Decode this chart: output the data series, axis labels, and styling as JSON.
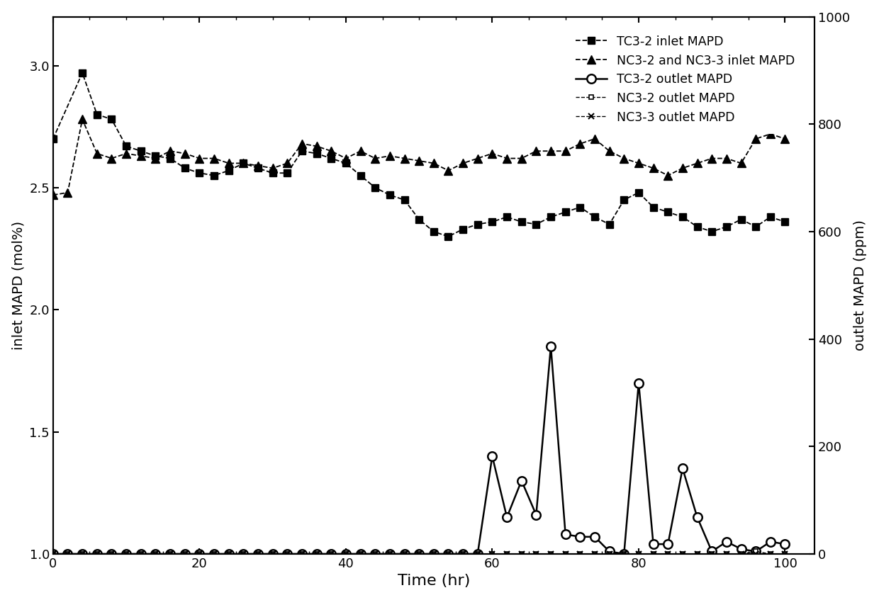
{
  "tc32_inlet_x": [
    0,
    4,
    6,
    8,
    10,
    12,
    14,
    16,
    18,
    20,
    22,
    24,
    26,
    28,
    30,
    32,
    34,
    36,
    38,
    40,
    42,
    44,
    46,
    48,
    50,
    52,
    54,
    56,
    58,
    60,
    62,
    64,
    66,
    68,
    70,
    72,
    74,
    76,
    78,
    80,
    82,
    84,
    86,
    88,
    90,
    92,
    94,
    96,
    98,
    100
  ],
  "tc32_inlet_y": [
    2.7,
    2.97,
    2.8,
    2.78,
    2.67,
    2.65,
    2.63,
    2.62,
    2.58,
    2.56,
    2.55,
    2.57,
    2.6,
    2.58,
    2.56,
    2.56,
    2.65,
    2.64,
    2.62,
    2.6,
    2.55,
    2.5,
    2.47,
    2.45,
    2.37,
    2.32,
    2.3,
    2.33,
    2.35,
    2.36,
    2.38,
    2.36,
    2.35,
    2.38,
    2.4,
    2.42,
    2.38,
    2.35,
    2.45,
    2.48,
    2.42,
    2.4,
    2.38,
    2.34,
    2.32,
    2.34,
    2.37,
    2.34,
    2.38,
    2.36
  ],
  "nc32_nc33_inlet_x": [
    0,
    2,
    4,
    6,
    8,
    10,
    12,
    14,
    16,
    18,
    20,
    22,
    24,
    26,
    28,
    30,
    32,
    34,
    36,
    38,
    40,
    42,
    44,
    46,
    48,
    50,
    52,
    54,
    56,
    58,
    60,
    62,
    64,
    66,
    68,
    70,
    72,
    74,
    76,
    78,
    80,
    82,
    84,
    86,
    88,
    90,
    92,
    94,
    96,
    98,
    100
  ],
  "nc32_nc33_inlet_y": [
    2.47,
    2.48,
    2.78,
    2.64,
    2.62,
    2.64,
    2.63,
    2.62,
    2.65,
    2.64,
    2.62,
    2.62,
    2.6,
    2.6,
    2.59,
    2.58,
    2.6,
    2.68,
    2.67,
    2.65,
    2.62,
    2.65,
    2.62,
    2.63,
    2.62,
    2.61,
    2.6,
    2.57,
    2.6,
    2.62,
    2.64,
    2.62,
    2.62,
    2.65,
    2.65,
    2.65,
    2.68,
    2.7,
    2.65,
    2.62,
    2.6,
    2.58,
    2.55,
    2.58,
    2.6,
    2.62,
    2.62,
    2.6,
    2.7,
    2.72,
    2.7
  ],
  "tc32_outlet_x": [
    0,
    2,
    4,
    6,
    8,
    10,
    12,
    14,
    16,
    18,
    20,
    22,
    24,
    26,
    28,
    30,
    32,
    34,
    36,
    38,
    40,
    42,
    44,
    46,
    48,
    50,
    52,
    54,
    56,
    58,
    60,
    62,
    64,
    66,
    68,
    70,
    72,
    74,
    76,
    78,
    80,
    82,
    84,
    86,
    88,
    90,
    92,
    94,
    96,
    98,
    100
  ],
  "tc32_outlet_y": [
    1.0,
    1.0,
    1.0,
    1.0,
    1.0,
    1.0,
    1.0,
    1.0,
    1.0,
    1.0,
    1.0,
    1.0,
    1.0,
    1.0,
    1.0,
    1.0,
    1.0,
    1.0,
    1.0,
    1.0,
    1.0,
    1.0,
    1.0,
    1.0,
    1.0,
    1.0,
    1.0,
    1.0,
    1.0,
    1.0,
    1.4,
    1.15,
    1.3,
    1.16,
    1.85,
    1.08,
    1.07,
    1.07,
    1.01,
    1.0,
    1.7,
    1.04,
    1.04,
    1.35,
    1.15,
    1.01,
    1.05,
    1.02,
    1.01,
    1.05,
    1.04
  ],
  "nc32_outlet_x": [
    0,
    2,
    4,
    6,
    8,
    10,
    12,
    14,
    16,
    18,
    20,
    22,
    24,
    26,
    28,
    30,
    32,
    34,
    36,
    38,
    40,
    42,
    44,
    46,
    48,
    50,
    52,
    54,
    56,
    58,
    60,
    62,
    64,
    66,
    68,
    70,
    72,
    74,
    76,
    78,
    80,
    82,
    84,
    86,
    88,
    90,
    92,
    94,
    96,
    98,
    100
  ],
  "nc32_outlet_y": [
    1.0,
    1.0,
    1.0,
    1.0,
    1.0,
    1.0,
    1.0,
    1.0,
    1.0,
    1.0,
    1.0,
    1.0,
    1.0,
    1.0,
    1.0,
    1.0,
    1.0,
    1.0,
    1.0,
    1.0,
    1.0,
    1.0,
    1.0,
    1.0,
    1.0,
    1.0,
    1.0,
    1.0,
    1.0,
    1.0,
    1.0,
    1.0,
    1.0,
    1.0,
    1.0,
    1.0,
    1.0,
    1.0,
    1.0,
    1.0,
    1.0,
    1.0,
    1.0,
    1.0,
    1.0,
    1.0,
    1.0,
    1.0,
    1.01,
    1.0,
    1.0
  ],
  "nc33_outlet_x": [
    0,
    2,
    4,
    6,
    8,
    10,
    12,
    14,
    16,
    18,
    20,
    22,
    24,
    26,
    28,
    30,
    32,
    34,
    36,
    38,
    40,
    42,
    44,
    46,
    48,
    50,
    52,
    54,
    56,
    58,
    60,
    62,
    64,
    66,
    68,
    70,
    72,
    74,
    76,
    78,
    80,
    82,
    84,
    86,
    88,
    90,
    92,
    94,
    96,
    98,
    100
  ],
  "nc33_outlet_y": [
    1.0,
    1.0,
    1.0,
    1.0,
    1.0,
    1.0,
    1.0,
    1.0,
    1.0,
    1.0,
    1.0,
    1.0,
    1.0,
    1.0,
    1.0,
    1.0,
    1.0,
    1.0,
    1.0,
    1.0,
    1.0,
    1.0,
    1.0,
    1.0,
    1.0,
    1.0,
    1.0,
    1.0,
    1.0,
    1.0,
    1.0,
    1.0,
    1.0,
    1.0,
    1.0,
    1.0,
    1.0,
    1.0,
    1.0,
    1.0,
    1.0,
    1.0,
    1.0,
    1.0,
    1.0,
    1.0,
    1.0,
    1.0,
    1.0,
    1.0,
    1.0
  ],
  "xlabel": "Time (hr)",
  "ylabel_left": "inlet MAPD (mol%)",
  "ylabel_right": "outlet MAPD (ppm)",
  "ylim_left": [
    1.0,
    3.2
  ],
  "ylim_right": [
    0,
    1000
  ],
  "xlim": [
    0,
    104
  ],
  "xticks": [
    0,
    20,
    40,
    60,
    80,
    100
  ],
  "yticks_left": [
    1.0,
    1.5,
    2.0,
    2.5,
    3.0
  ],
  "yticks_right": [
    0,
    200,
    400,
    600,
    800,
    1000
  ],
  "legend_labels": [
    "TC3-2 inlet MAPD",
    "NC3-2 and NC3-3 inlet MAPD",
    "TC3-2 outlet MAPD",
    "NC3-2 outlet MAPD",
    "NC3-3 outlet MAPD"
  ],
  "line_color": "#000000",
  "bg_color": "#ffffff"
}
